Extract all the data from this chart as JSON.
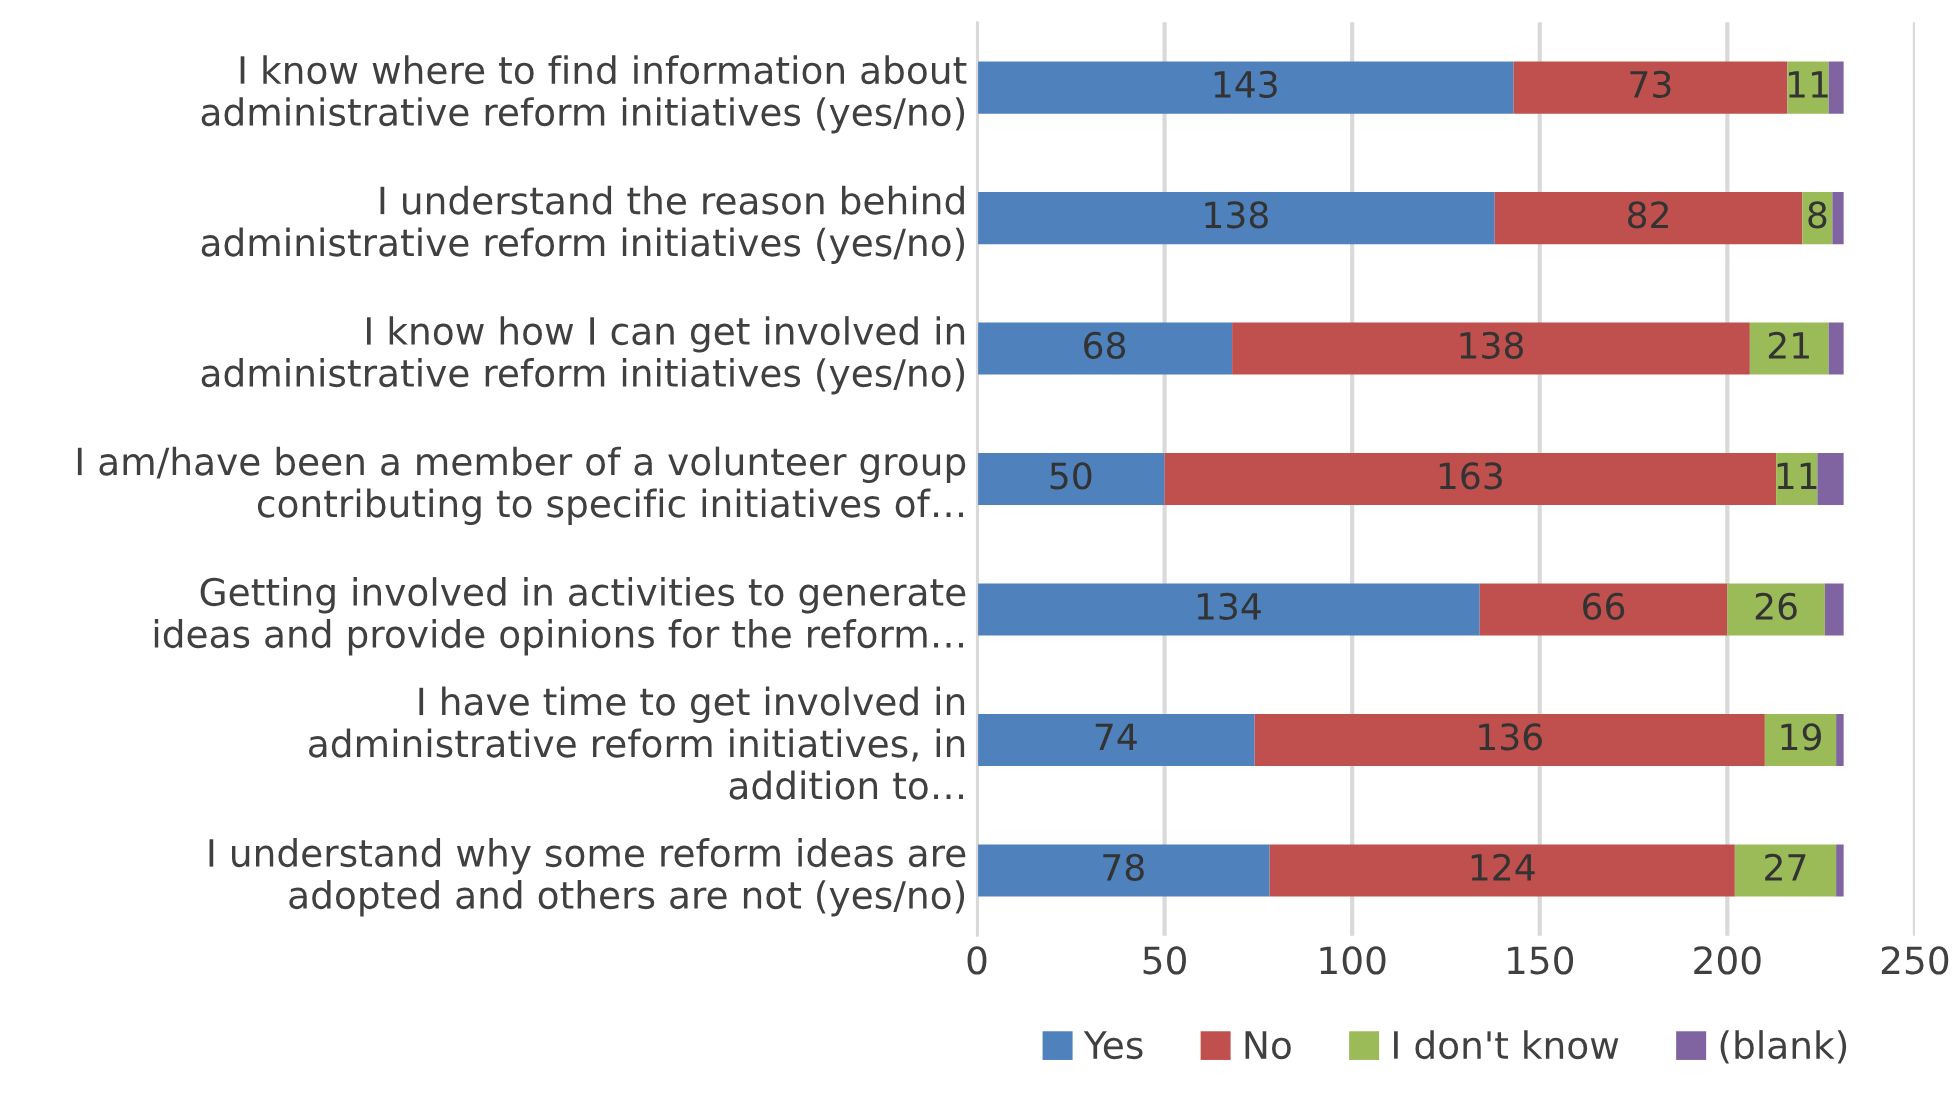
{
  "chart_data": {
    "type": "bar",
    "orientation": "horizontal",
    "stacked": true,
    "categories": [
      "I know where to find information about administrative reform initiatives (yes/no)",
      "I understand the reason behind administrative reform initiatives (yes/no)",
      "I know how I can get involved in administrative reform initiatives (yes/no)",
      "I am/have been a member of a volunteer group contributing to specific initiatives of…",
      "Getting involved in activities to generate ideas and provide opinions for the reform…",
      "I have time to get involved in administrative reform initiatives, in addition to…",
      "I understand why some reform ideas are adopted and others are not (yes/no)"
    ],
    "series": [
      {
        "name": "Yes",
        "color": "#4f81bd",
        "values": [
          143,
          138,
          68,
          50,
          134,
          74,
          78
        ],
        "value_labels": [
          "143",
          "138",
          "68",
          "50",
          "134",
          "74",
          "78"
        ]
      },
      {
        "name": "No",
        "color": "#c0504d",
        "values": [
          73,
          82,
          138,
          163,
          66,
          136,
          124
        ],
        "value_labels": [
          "73",
          "82",
          "138",
          "163",
          "66",
          "136",
          "124"
        ]
      },
      {
        "name": "I don't know",
        "color": "#9bbb59",
        "values": [
          11,
          8,
          21,
          11,
          26,
          19,
          27
        ],
        "value_labels": [
          "11",
          "8",
          "21",
          "11",
          "26",
          "19",
          "27"
        ]
      },
      {
        "name": "(blank)",
        "color": "#8064a2",
        "values": [
          4,
          3,
          4,
          7,
          5,
          2,
          2
        ]
      }
    ],
    "xlim": [
      0,
      250
    ],
    "xticks": [
      0,
      50,
      100,
      150,
      200,
      250
    ],
    "grid": "x",
    "legend": "bottom"
  }
}
